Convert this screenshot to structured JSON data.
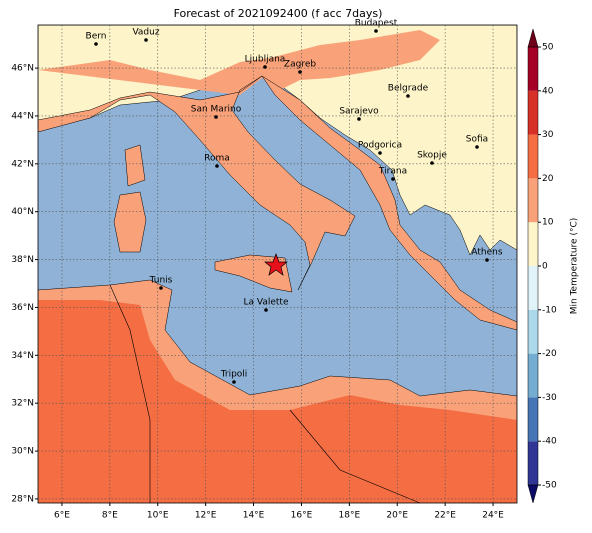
{
  "title": "Forecast of 2021092400 (f acc 7days)",
  "map": {
    "xlim": [
      5,
      25
    ],
    "ylim": [
      27.83,
      47.8
    ],
    "xticks": [
      {
        "value": 6,
        "label": "6°E"
      },
      {
        "value": 8,
        "label": "8°E"
      },
      {
        "value": 10,
        "label": "10°E"
      },
      {
        "value": 12,
        "label": "12°E"
      },
      {
        "value": 14,
        "label": "14°E"
      },
      {
        "value": 16,
        "label": "16°E"
      },
      {
        "value": 18,
        "label": "18°E"
      },
      {
        "value": 20,
        "label": "20°E"
      },
      {
        "value": 22,
        "label": "22°E"
      },
      {
        "value": 24,
        "label": "24°E"
      }
    ],
    "yticks": [
      {
        "value": 28,
        "label": "28°N"
      },
      {
        "value": 30,
        "label": "30°N"
      },
      {
        "value": 32,
        "label": "32°N"
      },
      {
        "value": 34,
        "label": "34°N"
      },
      {
        "value": 36,
        "label": "36°N"
      },
      {
        "value": 38,
        "label": "38°N"
      },
      {
        "value": 40,
        "label": "40°N"
      },
      {
        "value": 42,
        "label": "42°N"
      },
      {
        "value": 44,
        "label": "44°N"
      },
      {
        "value": 46,
        "label": "46°N"
      }
    ],
    "grid": true,
    "cities": [
      "Bern",
      "Vaduz",
      "Budapest",
      "Ljubljana",
      "Zagreb",
      "Belgrade",
      "San Marino",
      "Sarajevo",
      "Sofia",
      "Podgorica",
      "Skopje",
      "Roma",
      "Tirana",
      "Athens",
      "Tunis",
      "La Valette",
      "Tripoli"
    ]
  },
  "colorbar": {
    "label": "Min Temperature (°C)",
    "lim": [
      -50,
      50
    ],
    "ticks": [
      -50,
      -40,
      -30,
      -20,
      -10,
      0,
      10,
      20,
      30,
      40,
      50
    ],
    "colors": [
      "#313695",
      "#4575b4",
      "#74add1",
      "#abd9e9",
      "#e0f3f8",
      "#fdf5c9",
      "#f9a27a",
      "#f46d43",
      "#d73027",
      "#a50026"
    ],
    "under_color": "#0b0b66",
    "over_color": "#6e0018"
  }
}
